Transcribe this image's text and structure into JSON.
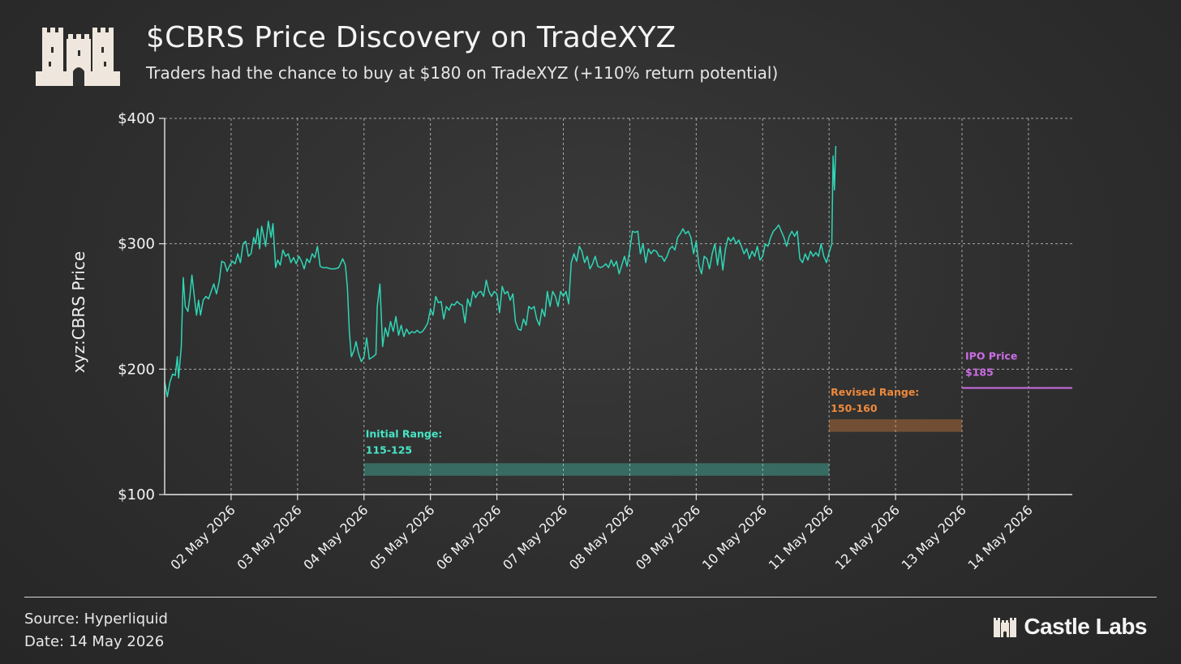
{
  "header": {
    "title": "$CBRS Price Discovery on TradeXYZ",
    "subtitle": "Traders had the chance to buy at $180 on TradeXYZ (+110% return potential)"
  },
  "footer": {
    "source": "Source: Hyperliquid",
    "date": "Date: 14 May 2026",
    "brand": "Castle Labs"
  },
  "colors": {
    "line": "#2fd6b5",
    "initial": "#47e6c7",
    "revised": "#ef8a3c",
    "ipo": "#cc6ee6",
    "grid": "#bdbdbd"
  },
  "chart_data": {
    "type": "line",
    "title": "$CBRS Price Discovery on TradeXYZ",
    "ylabel": "xyz:CBRS Price",
    "xlabel": "",
    "ylim": [
      100,
      400
    ],
    "y_ticks": [
      {
        "value": 100,
        "label": "$100"
      },
      {
        "value": 200,
        "label": "$200"
      },
      {
        "value": 300,
        "label": "$300"
      },
      {
        "value": 400,
        "label": "$400"
      }
    ],
    "x_range_days": [
      1.0,
      14.66
    ],
    "x_ticks": [
      {
        "day": 2,
        "label": "02 May 2026"
      },
      {
        "day": 3,
        "label": "03 May 2026"
      },
      {
        "day": 4,
        "label": "04 May 2026"
      },
      {
        "day": 5,
        "label": "05 May 2026"
      },
      {
        "day": 6,
        "label": "06 May 2026"
      },
      {
        "day": 7,
        "label": "07 May 2026"
      },
      {
        "day": 8,
        "label": "08 May 2026"
      },
      {
        "day": 9,
        "label": "09 May 2026"
      },
      {
        "day": 10,
        "label": "10 May 2026"
      },
      {
        "day": 11,
        "label": "11 May 2026"
      },
      {
        "day": 12,
        "label": "12 May 2026"
      },
      {
        "day": 13,
        "label": "13 May 2026"
      },
      {
        "day": 14,
        "label": "14 May 2026"
      }
    ],
    "grid": true,
    "series": [
      {
        "points": [
          [
            1.0,
            190
          ],
          [
            1.04,
            178
          ],
          [
            1.08,
            190
          ],
          [
            1.12,
            196
          ],
          [
            1.16,
            195
          ],
          [
            1.19,
            210
          ],
          [
            1.21,
            193
          ],
          [
            1.25,
            218
          ],
          [
            1.28,
            273
          ],
          [
            1.31,
            250
          ],
          [
            1.35,
            246
          ],
          [
            1.38,
            258
          ],
          [
            1.41,
            275
          ],
          [
            1.45,
            256
          ],
          [
            1.48,
            243
          ],
          [
            1.51,
            255
          ],
          [
            1.54,
            243
          ],
          [
            1.58,
            255
          ],
          [
            1.62,
            258
          ],
          [
            1.66,
            256
          ],
          [
            1.7,
            262
          ],
          [
            1.74,
            268
          ],
          [
            1.78,
            260
          ],
          [
            1.82,
            270
          ],
          [
            1.86,
            286
          ],
          [
            1.9,
            285
          ],
          [
            1.94,
            278
          ],
          [
            1.98,
            283
          ],
          [
            2.02,
            286
          ],
          [
            2.06,
            284
          ],
          [
            2.1,
            292
          ],
          [
            2.14,
            285
          ],
          [
            2.18,
            300
          ],
          [
            2.22,
            302
          ],
          [
            2.26,
            290
          ],
          [
            2.3,
            292
          ],
          [
            2.34,
            305
          ],
          [
            2.37,
            300
          ],
          [
            2.4,
            312
          ],
          [
            2.43,
            296
          ],
          [
            2.46,
            314
          ],
          [
            2.49,
            306
          ],
          [
            2.52,
            298
          ],
          [
            2.56,
            318
          ],
          [
            2.6,
            305
          ],
          [
            2.63,
            316
          ],
          [
            2.67,
            281
          ],
          [
            2.7,
            287
          ],
          [
            2.74,
            283
          ],
          [
            2.78,
            295
          ],
          [
            2.82,
            290
          ],
          [
            2.86,
            292
          ],
          [
            2.9,
            285
          ],
          [
            2.94,
            289
          ],
          [
            2.98,
            284
          ],
          [
            3.02,
            290
          ],
          [
            3.06,
            286
          ],
          [
            3.1,
            280
          ],
          [
            3.14,
            288
          ],
          [
            3.18,
            285
          ],
          [
            3.22,
            292
          ],
          [
            3.26,
            289
          ],
          [
            3.3,
            298
          ],
          [
            3.34,
            282
          ],
          [
            3.38,
            281
          ],
          [
            3.44,
            281
          ],
          [
            3.5,
            280
          ],
          [
            3.56,
            280
          ],
          [
            3.62,
            281
          ],
          [
            3.68,
            288
          ],
          [
            3.72,
            283
          ],
          [
            3.75,
            265
          ],
          [
            3.78,
            230
          ],
          [
            3.81,
            210
          ],
          [
            3.85,
            215
          ],
          [
            3.88,
            222
          ],
          [
            3.92,
            212
          ],
          [
            3.96,
            206
          ],
          [
            4.0,
            210
          ],
          [
            4.04,
            225
          ],
          [
            4.08,
            208
          ],
          [
            4.14,
            210
          ],
          [
            4.18,
            212
          ],
          [
            4.2,
            250
          ],
          [
            4.24,
            268
          ],
          [
            4.28,
            218
          ],
          [
            4.32,
            233
          ],
          [
            4.36,
            226
          ],
          [
            4.4,
            238
          ],
          [
            4.44,
            230
          ],
          [
            4.48,
            242
          ],
          [
            4.52,
            227
          ],
          [
            4.56,
            235
          ],
          [
            4.6,
            226
          ],
          [
            4.64,
            232
          ],
          [
            4.68,
            228
          ],
          [
            4.72,
            230
          ],
          [
            4.76,
            229
          ],
          [
            4.8,
            231
          ],
          [
            4.84,
            229
          ],
          [
            4.88,
            230
          ],
          [
            4.92,
            233
          ],
          [
            4.96,
            237
          ],
          [
            5.0,
            248
          ],
          [
            5.04,
            243
          ],
          [
            5.08,
            258
          ],
          [
            5.12,
            253
          ],
          [
            5.16,
            254
          ],
          [
            5.2,
            240
          ],
          [
            5.24,
            250
          ],
          [
            5.28,
            247
          ],
          [
            5.32,
            252
          ],
          [
            5.36,
            251
          ],
          [
            5.4,
            254
          ],
          [
            5.44,
            252
          ],
          [
            5.48,
            251
          ],
          [
            5.52,
            237
          ],
          [
            5.56,
            256
          ],
          [
            5.6,
            250
          ],
          [
            5.64,
            262
          ],
          [
            5.68,
            257
          ],
          [
            5.72,
            261
          ],
          [
            5.76,
            262
          ],
          [
            5.8,
            258
          ],
          [
            5.84,
            271
          ],
          [
            5.88,
            262
          ],
          [
            5.92,
            258
          ],
          [
            5.96,
            262
          ],
          [
            6.0,
            260
          ],
          [
            6.04,
            245
          ],
          [
            6.08,
            266
          ],
          [
            6.12,
            260
          ],
          [
            6.16,
            262
          ],
          [
            6.2,
            255
          ],
          [
            6.24,
            260
          ],
          [
            6.28,
            238
          ],
          [
            6.32,
            232
          ],
          [
            6.36,
            231
          ],
          [
            6.4,
            240
          ],
          [
            6.44,
            235
          ],
          [
            6.48,
            250
          ],
          [
            6.52,
            248
          ],
          [
            6.56,
            250
          ],
          [
            6.6,
            240
          ],
          [
            6.64,
            235
          ],
          [
            6.68,
            248
          ],
          [
            6.72,
            242
          ],
          [
            6.76,
            262
          ],
          [
            6.8,
            250
          ],
          [
            6.84,
            262
          ],
          [
            6.88,
            258
          ],
          [
            6.92,
            250
          ],
          [
            6.96,
            262
          ],
          [
            7.0,
            258
          ],
          [
            7.04,
            262
          ],
          [
            7.08,
            252
          ],
          [
            7.12,
            285
          ],
          [
            7.16,
            292
          ],
          [
            7.2,
            286
          ],
          [
            7.24,
            298
          ],
          [
            7.28,
            294
          ],
          [
            7.32,
            285
          ],
          [
            7.36,
            290
          ],
          [
            7.4,
            280
          ],
          [
            7.44,
            284
          ],
          [
            7.48,
            290
          ],
          [
            7.52,
            282
          ],
          [
            7.56,
            281
          ],
          [
            7.6,
            282
          ],
          [
            7.64,
            284
          ],
          [
            7.68,
            281
          ],
          [
            7.72,
            287
          ],
          [
            7.76,
            282
          ],
          [
            7.8,
            286
          ],
          [
            7.84,
            276
          ],
          [
            7.88,
            283
          ],
          [
            7.92,
            290
          ],
          [
            7.96,
            282
          ],
          [
            8.0,
            295
          ],
          [
            8.04,
            310
          ],
          [
            8.08,
            309
          ],
          [
            8.12,
            310
          ],
          [
            8.16,
            292
          ],
          [
            8.2,
            300
          ],
          [
            8.24,
            285
          ],
          [
            8.28,
            296
          ],
          [
            8.32,
            292
          ],
          [
            8.36,
            295
          ],
          [
            8.4,
            294
          ],
          [
            8.44,
            290
          ],
          [
            8.48,
            290
          ],
          [
            8.52,
            286
          ],
          [
            8.56,
            290
          ],
          [
            8.6,
            296
          ],
          [
            8.64,
            298
          ],
          [
            8.68,
            295
          ],
          [
            8.72,
            305
          ],
          [
            8.76,
            308
          ],
          [
            8.8,
            312
          ],
          [
            8.84,
            308
          ],
          [
            8.88,
            310
          ],
          [
            8.92,
            305
          ],
          [
            8.96,
            292
          ],
          [
            9.0,
            302
          ],
          [
            9.04,
            283
          ],
          [
            9.08,
            276
          ],
          [
            9.12,
            290
          ],
          [
            9.16,
            288
          ],
          [
            9.2,
            280
          ],
          [
            9.24,
            292
          ],
          [
            9.28,
            300
          ],
          [
            9.32,
            283
          ],
          [
            9.36,
            298
          ],
          [
            9.4,
            279
          ],
          [
            9.44,
            296
          ],
          [
            9.48,
            305
          ],
          [
            9.52,
            302
          ],
          [
            9.56,
            305
          ],
          [
            9.6,
            300
          ],
          [
            9.64,
            303
          ],
          [
            9.68,
            298
          ],
          [
            9.72,
            292
          ],
          [
            9.76,
            296
          ],
          [
            9.8,
            288
          ],
          [
            9.84,
            294
          ],
          [
            9.88,
            290
          ],
          [
            9.92,
            298
          ],
          [
            9.96,
            287
          ],
          [
            10.0,
            290
          ],
          [
            10.04,
            300
          ],
          [
            10.08,
            298
          ],
          [
            10.12,
            305
          ],
          [
            10.16,
            310
          ],
          [
            10.2,
            312
          ],
          [
            10.24,
            315
          ],
          [
            10.28,
            310
          ],
          [
            10.32,
            305
          ],
          [
            10.36,
            298
          ],
          [
            10.4,
            306
          ],
          [
            10.44,
            310
          ],
          [
            10.48,
            306
          ],
          [
            10.52,
            310
          ],
          [
            10.56,
            288
          ],
          [
            10.6,
            285
          ],
          [
            10.64,
            292
          ],
          [
            10.68,
            287
          ],
          [
            10.72,
            294
          ],
          [
            10.76,
            290
          ],
          [
            10.8,
            293
          ],
          [
            10.84,
            290
          ],
          [
            10.88,
            300
          ],
          [
            10.92,
            290
          ],
          [
            10.96,
            285
          ],
          [
            11.0,
            293
          ],
          [
            11.04,
            300
          ],
          [
            11.06,
            370
          ],
          [
            11.08,
            343
          ],
          [
            11.1,
            378
          ]
        ]
      }
    ],
    "annotations": {
      "initial": {
        "label_line1": "Initial Range:",
        "label_line2": "115-125",
        "low": 115,
        "high": 125,
        "x_start": 4,
        "x_end": 11
      },
      "revised": {
        "label_line1": "Revised Range:",
        "label_line2": "150-160",
        "low": 150,
        "high": 160,
        "x_start": 11,
        "x_end": 13
      },
      "ipo": {
        "label_line1": "IPO Price",
        "label_line2": "$185",
        "value": 185,
        "x_start": 13,
        "x_end": 14.66
      }
    }
  }
}
